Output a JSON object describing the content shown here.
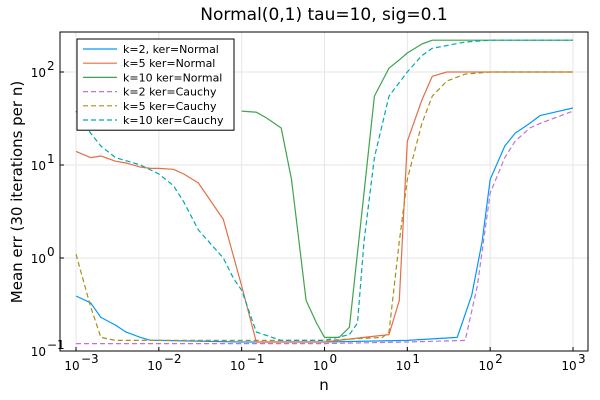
{
  "chart_data": {
    "type": "line",
    "title": "Normal(0,1) tau=10, sig=0.1",
    "xlabel": "n",
    "ylabel": "Mean err (30 iterations per n)",
    "xscale": "log",
    "yscale": "log",
    "xlim": [
      0.001,
      1000
    ],
    "ylim": [
      0.1,
      280
    ],
    "xticks": [
      {
        "value": 0.001,
        "base": "10",
        "exp": "−3"
      },
      {
        "value": 0.01,
        "base": "10",
        "exp": "−2"
      },
      {
        "value": 0.1,
        "base": "10",
        "exp": "−1"
      },
      {
        "value": 1,
        "base": "10",
        "exp": "0"
      },
      {
        "value": 10,
        "base": "10",
        "exp": "1"
      },
      {
        "value": 100,
        "base": "10",
        "exp": "2"
      },
      {
        "value": 1000,
        "base": "10",
        "exp": "3"
      }
    ],
    "yticks": [
      {
        "value": 0.1,
        "base": "10",
        "exp": "−1"
      },
      {
        "value": 1,
        "base": "10",
        "exp": "0"
      },
      {
        "value": 10,
        "base": "10",
        "exp": "1"
      },
      {
        "value": 100,
        "base": "10",
        "exp": "2"
      }
    ],
    "grid": true,
    "legend_position": "top-left",
    "series": [
      {
        "name": "k=2, ker=Normal",
        "color": "#009AFA",
        "dash": "solid",
        "x": [
          0.001,
          0.0015,
          0.002,
          0.003,
          0.004,
          0.006,
          0.008,
          0.01,
          0.1,
          1,
          10,
          40,
          60,
          80,
          100,
          150,
          200,
          300,
          400,
          600,
          1000
        ],
        "y": [
          0.39,
          0.33,
          0.23,
          0.19,
          0.16,
          0.14,
          0.13,
          0.13,
          0.125,
          0.125,
          0.13,
          0.14,
          0.4,
          1.5,
          7,
          16,
          22,
          28,
          34,
          37,
          41
        ]
      },
      {
        "name": "k=5 ker=Normal",
        "color": "#E36F47",
        "dash": "solid",
        "x": [
          0.001,
          0.0015,
          0.002,
          0.003,
          0.004,
          0.006,
          0.008,
          0.01,
          0.015,
          0.02,
          0.03,
          0.06,
          0.1,
          0.15,
          0.3,
          1,
          3,
          6,
          8,
          10,
          15,
          20,
          30,
          40,
          60,
          100,
          1000
        ],
        "y": [
          14,
          12,
          12.5,
          11,
          10.5,
          9.5,
          9.2,
          9.2,
          9,
          8,
          6.4,
          2.6,
          0.5,
          0.125,
          0.125,
          0.125,
          0.14,
          0.15,
          0.35,
          18,
          50,
          90,
          100,
          100,
          100,
          100,
          100
        ]
      },
      {
        "name": "k=10 ker=Normal",
        "color": "#3EA44E",
        "dash": "solid",
        "x": [
          0.1,
          0.15,
          0.2,
          0.3,
          0.4,
          0.6,
          0.8,
          1,
          1.5,
          2,
          3,
          4,
          6,
          8,
          10,
          15,
          20,
          30,
          50,
          100,
          1000
        ],
        "y": [
          38,
          37,
          32,
          25,
          7,
          0.35,
          0.2,
          0.14,
          0.14,
          0.18,
          5,
          55,
          110,
          135,
          160,
          200,
          220,
          220,
          220,
          220,
          220
        ]
      },
      {
        "name": "k=2 ker=Cauchy",
        "color": "#C271D2",
        "dash": "dashed",
        "x": [
          0.001,
          0.01,
          0.1,
          1,
          10,
          50,
          70,
          100,
          150,
          200,
          300,
          400,
          600,
          1000
        ],
        "y": [
          0.12,
          0.12,
          0.12,
          0.12,
          0.125,
          0.13,
          0.5,
          5,
          12,
          18,
          25,
          28,
          32,
          38
        ]
      },
      {
        "name": "k=5 ker=Cauchy",
        "color": "#AC8D18",
        "dash": "dashed",
        "x": [
          0.001,
          0.0015,
          0.002,
          0.003,
          0.01,
          0.1,
          1,
          5,
          6,
          8,
          10,
          15,
          20,
          30,
          50,
          100,
          1000
        ],
        "y": [
          1.1,
          0.3,
          0.14,
          0.13,
          0.13,
          0.13,
          0.13,
          0.14,
          0.16,
          1.5,
          7,
          28,
          55,
          80,
          95,
          100,
          100
        ]
      },
      {
        "name": "k=10 ker=Cauchy",
        "color": "#00A9AD",
        "dash": "dashed",
        "x": [
          0.001,
          0.0015,
          0.002,
          0.003,
          0.006,
          0.01,
          0.015,
          0.02,
          0.03,
          0.06,
          0.08,
          0.1,
          0.15,
          0.3,
          1,
          2,
          2.5,
          3,
          4,
          6,
          10,
          15,
          20,
          50,
          100,
          1000
        ],
        "y": [
          38,
          22,
          16,
          12,
          10,
          8,
          6,
          4,
          2,
          1,
          0.6,
          0.45,
          0.16,
          0.13,
          0.13,
          0.15,
          0.2,
          1.5,
          12,
          55,
          100,
          150,
          180,
          210,
          220,
          220
        ]
      }
    ]
  }
}
